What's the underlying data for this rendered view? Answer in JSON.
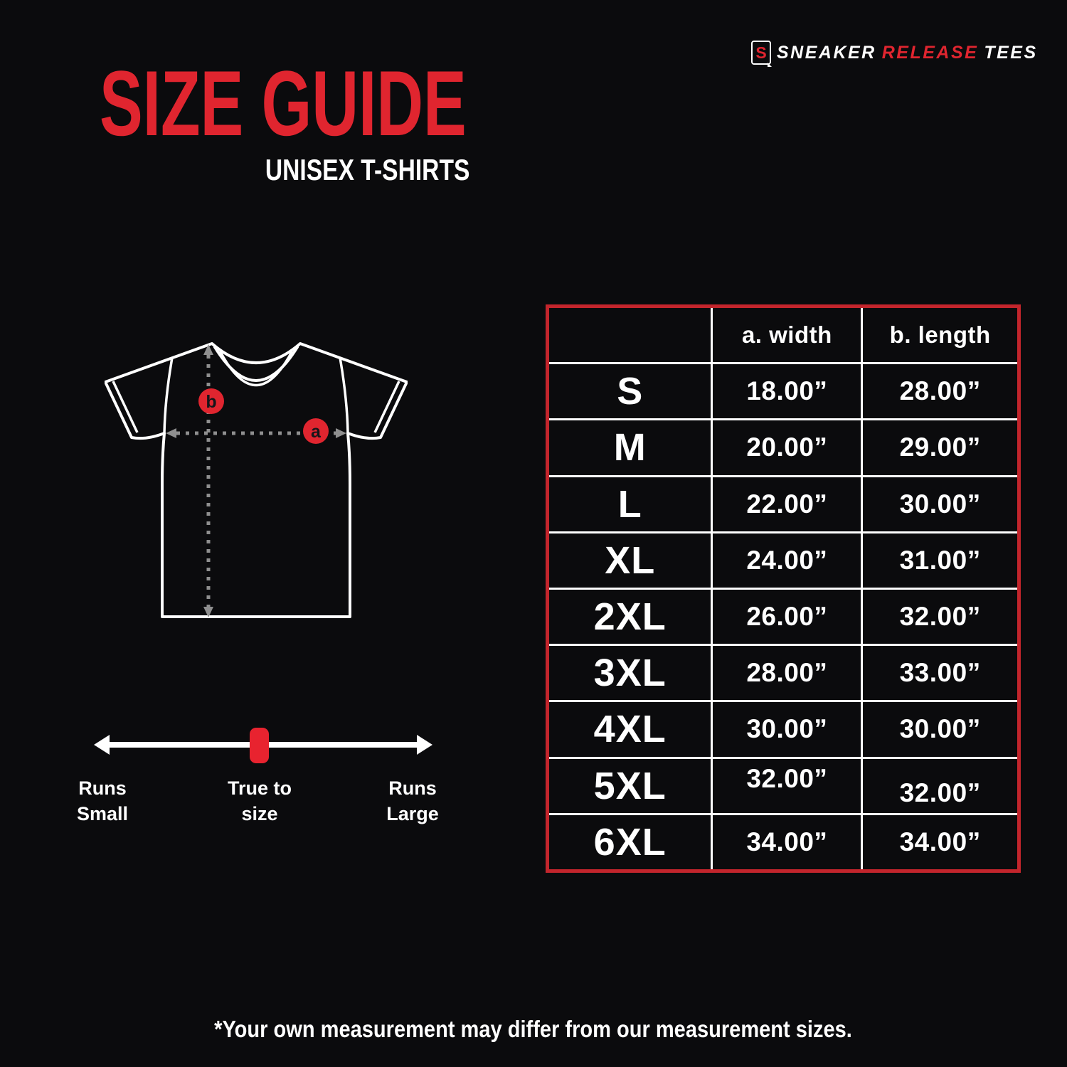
{
  "brand": {
    "logo_letter": "S",
    "word1": "SNEAKER",
    "word2": "RELEASE",
    "word3": "TEES"
  },
  "header": {
    "title": "SIZE GUIDE",
    "subtitle": "UNISEX T-SHIRTS"
  },
  "measure_diagram": {
    "width_marker": "a",
    "length_marker": "b"
  },
  "fit_scale": {
    "left_label": "Runs Small",
    "center_label": "True to size",
    "right_label": "Runs Large"
  },
  "size_table": {
    "headers": {
      "size": "",
      "width": "a. width",
      "length": "b. length"
    },
    "rows": [
      {
        "size": "S",
        "width": "18.00”",
        "length": "28.00”"
      },
      {
        "size": "M",
        "width": "20.00”",
        "length": "29.00”"
      },
      {
        "size": "L",
        "width": "22.00”",
        "length": "30.00”"
      },
      {
        "size": "XL",
        "width": "24.00”",
        "length": "31.00”"
      },
      {
        "size": "2XL",
        "width": "26.00”",
        "length": "32.00”"
      },
      {
        "size": "3XL",
        "width": "28.00”",
        "length": "33.00”"
      },
      {
        "size": "4XL",
        "width": "30.00”",
        "length": "30.00”"
      },
      {
        "size": "5XL",
        "width": "32.00”",
        "length": "32.00”"
      },
      {
        "size": "6XL",
        "width": "34.00”",
        "length": "34.00”"
      }
    ]
  },
  "footer": {
    "note": "*Your own measurement may differ from our measurement sizes."
  },
  "colors": {
    "background": "#0b0b0d",
    "accent_red": "#e0252f",
    "table_border_red": "#c3252c",
    "text_white": "#ffffff",
    "measure_gray": "#8f8f8f"
  }
}
